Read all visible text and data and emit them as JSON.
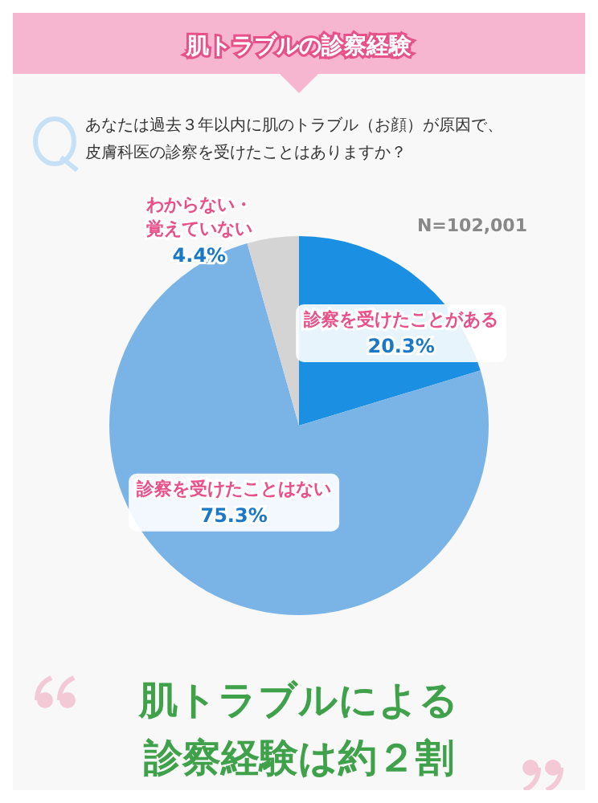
{
  "chart_data": {
    "type": "pie",
    "title": "肌トラブルの診察経験",
    "subtitle": "あなたは過去３年以内に肌のトラブル（お顔）が原因で、皮膚科医の診察を受けたことはありますか？",
    "categories": [
      "診察を受けたことがある",
      "診察を受けたことはない",
      "わからない・覚えていない"
    ],
    "values": [
      20.3,
      75.3,
      4.4
    ],
    "value_labels": [
      "20.3%",
      "75.3%",
      "4.4%"
    ],
    "colors": [
      "#1b8fe2",
      "#7ab4e6",
      "#d4d4d4"
    ],
    "annotations": [
      "N=102,001",
      "肌トラブルによる",
      "診察経験は約２割"
    ]
  }
}
